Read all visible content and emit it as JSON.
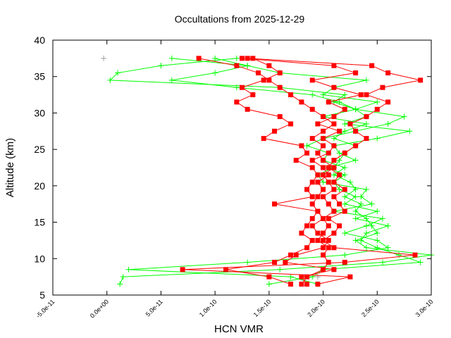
{
  "chart_data": {
    "type": "line",
    "title": "Occultations from 2025-12-29",
    "xlabel": "HCN VMR",
    "ylabel": "Altitude (km)",
    "xlim": [
      -5e-11,
      3e-10
    ],
    "ylim": [
      5,
      40
    ],
    "xticks": [
      "-5.0e-11",
      "0.0e+00",
      "5.0e-11",
      "1.0e-10",
      "1.5e-10",
      "2.0e-10",
      "2.5e-10",
      "3.0e-10"
    ],
    "xtick_values": [
      -5e-11,
      0,
      5e-11,
      1e-10,
      1.5e-10,
      2e-10,
      2.5e-10,
      3e-10
    ],
    "yticks": [
      "5",
      "10",
      "15",
      "20",
      "25",
      "30",
      "35",
      "40"
    ],
    "ytick_values": [
      5,
      10,
      15,
      20,
      25,
      30,
      35,
      40
    ],
    "grid": false,
    "altitudes": [
      6.5,
      7.5,
      8.5,
      9.5,
      10.5,
      11.5,
      12.5,
      13.5,
      14.5,
      15.5,
      16.5,
      17.5,
      18.5,
      19.5,
      20.5,
      21.5,
      22.5,
      23.5,
      24.5,
      25.5,
      26.5,
      27.5,
      28.5,
      29.5,
      30.5,
      31.5,
      32.5,
      33.5,
      34.5,
      35.5,
      36.5,
      37.5
    ],
    "series": [
      {
        "color": "#ff0000",
        "marker": "square",
        "profiles": [
          [
            1.8e-10,
            1.85e-10,
            2e-10,
            2.05e-10,
            2e-10,
            2.05e-10,
            1.95e-10,
            2e-10,
            2.05e-10,
            2e-10,
            2.1e-10,
            2.05e-10,
            2e-10,
            2.1e-10,
            2.05e-10,
            2e-10,
            2.1e-10,
            2e-10,
            1.95e-10,
            2e-10,
            1.9e-10,
            2e-10,
            2.1e-10,
            2e-10,
            1.9e-10,
            1.8e-10,
            1.7e-10,
            1.6e-10,
            1.5e-10,
            1.4e-10,
            1.2e-10,
            8.5e-11
          ],
          [
            1.95e-10,
            2.25e-10,
            7e-11,
            2.2e-10,
            2.85e-10,
            2.1e-10,
            2e-10,
            2.1e-10,
            2.15e-10,
            2.05e-10,
            2.2e-10,
            2.15e-10,
            2.1e-10,
            2.2e-10,
            2.1e-10,
            2.15e-10,
            2.05e-10,
            2.1e-10,
            2.2e-10,
            2.3e-10,
            2.4e-10,
            2.3e-10,
            2.25e-10,
            2.4e-10,
            2.5e-10,
            2.6e-10,
            2.4e-10,
            2.55e-10,
            2.9e-10,
            2.6e-10,
            2.45e-10,
            1.3e-10
          ],
          [
            1.7e-10,
            1.5e-10,
            1.1e-10,
            1.55e-10,
            1.7e-10,
            1.85e-10,
            1.9e-10,
            1.8e-10,
            1.85e-10,
            1.9e-10,
            1.95e-10,
            1.55e-10,
            1.9e-10,
            1.85e-10,
            1.9e-10,
            1.95e-10,
            1.9e-10,
            1.75e-10,
            1.85e-10,
            1.8e-10,
            1.45e-10,
            1.55e-10,
            1.7e-10,
            1.6e-10,
            1.3e-10,
            1.2e-10,
            1.35e-10,
            1.25e-10,
            1.45e-10,
            1.6e-10,
            1.5e-10,
            1.35e-10
          ],
          [
            1.85e-10,
            1.8e-10,
            2.1e-10,
            1.65e-10,
            1.75e-10,
            2e-10,
            2.05e-10,
            1.95e-10,
            1.9e-10,
            2e-10,
            1.95e-10,
            1.9e-10,
            1.95e-10,
            2e-10,
            1.95e-10,
            2.05e-10,
            2e-10,
            1.9e-10,
            2.05e-10,
            2.1e-10,
            2e-10,
            2.15e-10,
            1.95e-10,
            2.1e-10,
            2.2e-10,
            2.05e-10,
            2.35e-10,
            2.1e-10,
            1.9e-10,
            2.3e-10,
            2.1e-10,
            1.25e-10
          ]
        ]
      },
      {
        "color": "#00ff00",
        "marker": "plus",
        "profiles": [
          [
            1.2e-11,
            1.5e-11,
            1.6e-10,
            2.55e-10,
            3e-10,
            2.4e-10,
            2.3e-10,
            2.5e-10,
            2.45e-10,
            2.4e-10,
            2.3e-10,
            2.35e-10,
            2.2e-10,
            2.3e-10,
            2.25e-10,
            2.1e-10,
            2.2e-10,
            2e-10,
            2.05e-10,
            1.85e-10,
            2e-10,
            2.3e-10,
            2.6e-10,
            2.75e-10,
            2.3e-10,
            2.1e-10,
            2.2e-10,
            1.6e-10,
            3e-12,
            1e-11,
            5e-11,
            1.2e-10
          ],
          [
            1.5e-10,
            1.9e-10,
            2e-10,
            2.9e-10,
            2.7e-10,
            2.5e-10,
            2.35e-10,
            2.4e-10,
            2.6e-10,
            2.3e-10,
            2.5e-10,
            2.2e-10,
            2.3e-10,
            2.15e-10,
            2.1e-10,
            2.2e-10,
            2.05e-10,
            2.3e-10,
            2.15e-10,
            2.1e-10,
            2.5e-10,
            2.8e-10,
            2.2e-10,
            2.4e-10,
            2.3e-10,
            2.5e-10,
            2e-10,
            2.1e-10,
            2.4e-10,
            1.6e-10,
            1.3e-10,
            6e-11
          ],
          [
            1.95e-10,
            1.7e-10,
            2e-11,
            1.3e-10,
            2.2e-10,
            2.6e-10,
            2.5e-10,
            2.2e-10,
            2.4e-10,
            2.55e-10,
            2.1e-10,
            2.45e-10,
            2.35e-10,
            2.4e-10,
            2e-10,
            1.95e-10,
            2.1e-10,
            2.15e-10,
            2.2e-10,
            2.3e-10,
            2.1e-10,
            2.2e-10,
            2.4e-10,
            2e-10,
            2.3e-10,
            2.15e-10,
            1.9e-10,
            1.2e-10,
            6e-11,
            1e-10,
            1.3e-10,
            1e-10
          ]
        ]
      },
      {
        "color": "#a0a0a0",
        "marker": "plus",
        "points": [
          [
            -3e-12,
            37.5
          ],
          [
            5e-11,
            36.5
          ],
          [
            1.95e-10,
            7.5
          ]
        ]
      }
    ]
  }
}
